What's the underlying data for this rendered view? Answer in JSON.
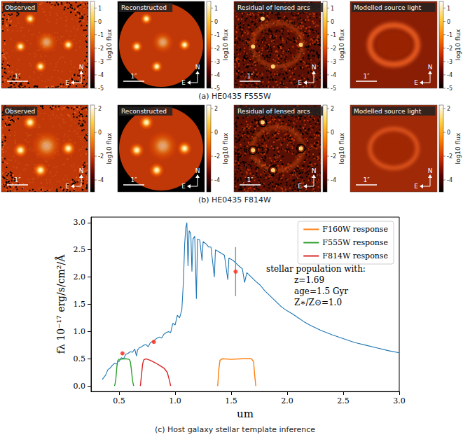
{
  "panels": [
    {
      "caption": "(a) HE0435 F555W",
      "images": [
        {
          "title": "Observed"
        },
        {
          "title": "Reconstructed"
        },
        {
          "title": "Residual of lensed arcs"
        },
        {
          "title": "Modelled source light"
        }
      ],
      "colorbar": {
        "label": "log10 flux",
        "range": [
          -5,
          1.5
        ],
        "ticks": [
          1,
          0,
          -1,
          -2,
          -3,
          -4,
          -5
        ]
      },
      "scale_bar": "1″",
      "compass": [
        "N",
        "E"
      ]
    },
    {
      "caption": "(b) HE0435 F814W",
      "images": [
        {
          "title": "Observed"
        },
        {
          "title": "Reconstructed"
        },
        {
          "title": "Residual of lensed arcs"
        },
        {
          "title": "Modelled source light"
        }
      ],
      "colorbar": {
        "label": "log10 flux",
        "range": [
          -5,
          2.3
        ],
        "ticks": [
          2,
          0,
          -2,
          -4
        ]
      },
      "scale_bar": "1″",
      "compass": [
        "N",
        "E"
      ]
    }
  ],
  "chart_data": {
    "type": "line",
    "caption": "(c) Host galaxy stellar template inference",
    "xlabel": "um",
    "ylabel": "fλ 10⁻¹⁷ erg/s/cm²/Å",
    "xlim": [
      0.25,
      3.0
    ],
    "xticks": [
      0.5,
      {
        "value": 1,
        "label": "1.0"
      },
      1.5,
      {
        "value": 2,
        "label": "2.0"
      },
      2.5,
      {
        "value": 3,
        "label": "3.0"
      }
    ],
    "ylim": [
      -0.1,
      3.1
    ],
    "yticks": [
      {
        "value": 0,
        "label": "0.0"
      },
      0.5,
      {
        "value": 1,
        "label": "1.0"
      },
      1.5,
      {
        "value": 2,
        "label": "2.0"
      },
      2.5,
      {
        "value": 3,
        "label": "3.0"
      }
    ],
    "grid": false,
    "legend": "upper right",
    "annotations": [
      "stellar population with:",
      "z=1.69",
      "age=1.5 Gyr",
      "Z∗/Z⊙=1.0"
    ],
    "series": [
      {
        "type": "line",
        "color": "#1f77b4",
        "x": [
          0.35,
          0.38,
          0.4,
          0.42,
          0.44,
          0.46,
          0.48,
          0.49,
          0.5,
          0.52,
          0.54,
          0.56,
          0.58,
          0.6,
          0.62,
          0.64,
          0.655,
          0.665,
          0.68,
          0.7,
          0.72,
          0.74,
          0.76,
          0.78,
          0.8,
          0.82,
          0.84,
          0.86,
          0.88,
          0.9,
          0.92,
          0.94,
          0.96,
          0.98,
          1.0,
          1.02,
          1.04,
          1.06,
          1.075,
          1.085,
          1.095,
          1.105,
          1.115,
          1.125,
          1.14,
          1.15,
          1.16,
          1.175,
          1.19,
          1.2,
          1.22,
          1.24,
          1.25,
          1.28,
          1.3,
          1.32,
          1.35,
          1.36,
          1.4,
          1.44,
          1.47,
          1.48,
          1.52,
          1.56,
          1.6,
          1.62,
          1.64,
          1.68,
          1.72,
          1.76,
          1.8,
          1.85,
          1.9,
          1.95,
          2.0,
          2.05,
          2.1,
          2.15,
          2.2,
          2.3,
          2.4,
          2.5,
          2.6,
          2.7,
          2.8,
          2.9,
          3.0
        ],
        "values": [
          0.12,
          0.2,
          0.3,
          0.33,
          0.38,
          0.42,
          0.4,
          0.46,
          0.45,
          0.52,
          0.5,
          0.58,
          0.6,
          0.63,
          0.62,
          0.68,
          0.55,
          0.66,
          0.7,
          0.72,
          0.75,
          0.76,
          0.72,
          0.8,
          0.82,
          0.85,
          0.88,
          0.9,
          0.88,
          0.95,
          0.98,
          1.0,
          0.98,
          1.15,
          1.12,
          1.3,
          1.25,
          1.4,
          1.95,
          2.6,
          2.9,
          3.0,
          2.2,
          2.85,
          2.8,
          2.1,
          2.7,
          2.75,
          1.6,
          2.7,
          2.68,
          2.3,
          2.65,
          2.6,
          2.55,
          2.55,
          2.0,
          2.5,
          2.45,
          2.4,
          1.95,
          2.35,
          2.3,
          2.22,
          2.15,
          1.9,
          2.08,
          2.0,
          1.92,
          1.85,
          1.75,
          1.65,
          1.55,
          1.45,
          1.38,
          1.32,
          1.25,
          1.18,
          1.12,
          1.02,
          0.94,
          0.87,
          0.8,
          0.75,
          0.7,
          0.65,
          0.61
        ]
      },
      {
        "type": "line",
        "name": "F160W response",
        "color": "#ff7f0e",
        "x": [
          1.38,
          1.39,
          1.4,
          1.42,
          1.5,
          1.6,
          1.68,
          1.7,
          1.71,
          1.72
        ],
        "values": [
          0,
          0.3,
          0.47,
          0.5,
          0.49,
          0.5,
          0.5,
          0.45,
          0.2,
          0
        ]
      },
      {
        "type": "line",
        "name": "F555W response",
        "color": "#2ca02c",
        "x": [
          0.46,
          0.47,
          0.48,
          0.49,
          0.5,
          0.56,
          0.59,
          0.6,
          0.61,
          0.62,
          0.63
        ],
        "values": [
          0,
          0.1,
          0.35,
          0.47,
          0.49,
          0.5,
          0.49,
          0.45,
          0.3,
          0.1,
          0
        ]
      },
      {
        "type": "line",
        "name": "F814W response",
        "color": "#d62728",
        "x": [
          0.69,
          0.7,
          0.71,
          0.72,
          0.74,
          0.78,
          0.82,
          0.86,
          0.9,
          0.93,
          0.95,
          0.96
        ],
        "values": [
          0,
          0.2,
          0.4,
          0.48,
          0.5,
          0.47,
          0.43,
          0.38,
          0.33,
          0.25,
          0.1,
          0
        ]
      },
      {
        "type": "scatter",
        "color": "#ff2a1a",
        "marker": "circle",
        "x": [
          0.53,
          0.81,
          1.54
        ],
        "values": [
          0.6,
          0.81,
          2.1
        ],
        "errors": [
          0.03,
          0.03,
          0.45
        ]
      }
    ]
  }
}
